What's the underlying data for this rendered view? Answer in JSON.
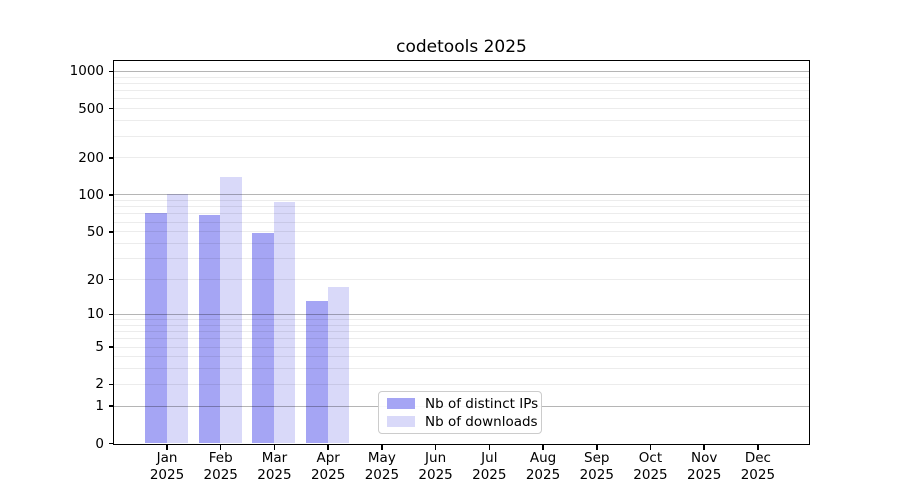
{
  "title": "codetools 2025",
  "chart_data": {
    "type": "bar",
    "title": "codetools 2025",
    "categories": [
      "Jan",
      "Feb",
      "Mar",
      "Apr",
      "May",
      "Jun",
      "Jul",
      "Aug",
      "Sep",
      "Oct",
      "Nov",
      "Dec"
    ],
    "year": "2025",
    "series": [
      {
        "name": "Nb of distinct IPs",
        "color": "#a5a5f4",
        "values": [
          71,
          68,
          48,
          13,
          0,
          0,
          0,
          0,
          0,
          0,
          0,
          0
        ]
      },
      {
        "name": "Nb of downloads",
        "color": "#d9d9f9",
        "values": [
          100,
          139,
          87,
          17,
          0,
          0,
          0,
          0,
          0,
          0,
          0,
          0
        ]
      }
    ],
    "xlabel": "",
    "ylabel": "",
    "yscale": "log1p",
    "ylim": [
      0,
      1200
    ],
    "yticks": [
      0,
      1,
      2,
      5,
      10,
      20,
      50,
      100,
      200,
      500,
      1000
    ],
    "grid": true,
    "legend_position": "lower-center-inside"
  },
  "legend": {
    "items": [
      {
        "label": "Nb of distinct IPs",
        "color": "#a5a5f4"
      },
      {
        "label": "Nb of downloads",
        "color": "#d9d9f9"
      }
    ]
  },
  "colors": {
    "background": "#ffffff",
    "axis": "#000000",
    "major_grid_rgba": "rgba(0,0,0,0.29)",
    "minor_grid_rgba": "rgba(0,0,0,0.075)"
  }
}
